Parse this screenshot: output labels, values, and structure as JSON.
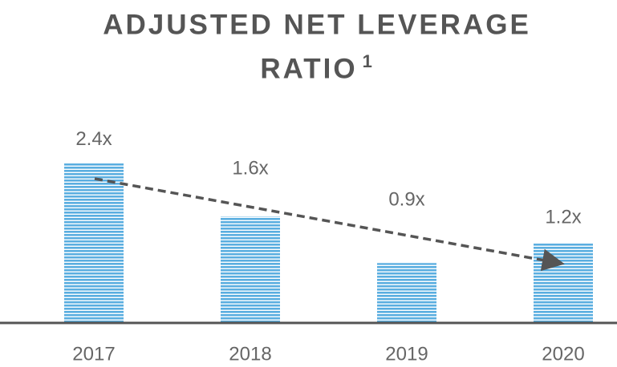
{
  "chart_data": {
    "type": "bar",
    "title": "ADJUSTED NET LEVERAGE RATIO",
    "title_superscript": "1",
    "categories": [
      "2017",
      "2018",
      "2019",
      "2020"
    ],
    "values": [
      2.4,
      1.6,
      0.9,
      1.2
    ],
    "value_labels": [
      "2.4x",
      "1.6x",
      "0.9x",
      "1.2x"
    ],
    "color": "#5aaee0",
    "ylim": [
      0,
      3
    ]
  }
}
